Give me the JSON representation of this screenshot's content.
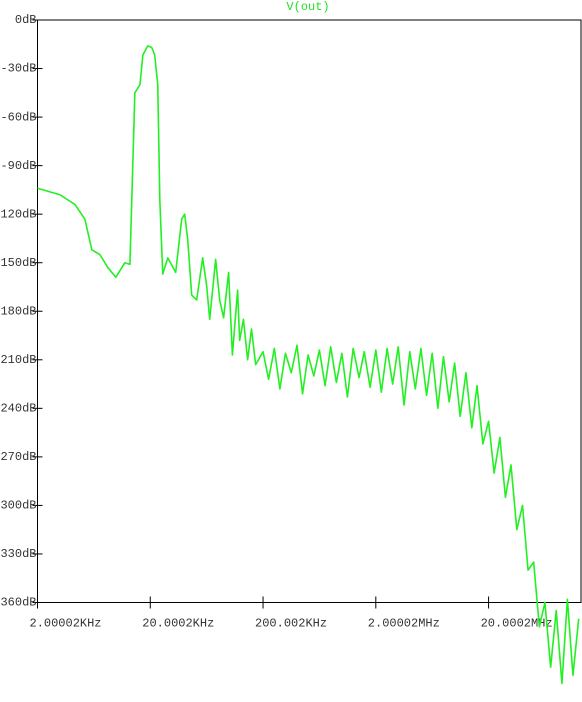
{
  "chart_data": {
    "type": "line",
    "title": "V(out)",
    "xscale": "log",
    "grid": false,
    "x": [
      2000,
      3160,
      4290,
      5260,
      6070,
      7150,
      8410,
      9900,
      11900,
      13200,
      14600,
      16200,
      17200,
      19000,
      20600,
      21900,
      23300,
      24300,
      25800,
      28600,
      33600,
      38000,
      40400,
      43000,
      46600,
      51600,
      58300,
      63200,
      67300,
      76000,
      82500,
      89400,
      99000,
      107000,
      119000,
      124000,
      134000,
      146000,
      158000,
      172000,
      200000,
      224000,
      252000,
      282000,
      316000,
      356000,
      400000,
      448000,
      502000,
      564000,
      632000,
      710000,
      796000,
      894000,
      1000000,
      1120000,
      1260000,
      1420000,
      1580000,
      1780000,
      2000000,
      2240000,
      2520000,
      2820000,
      3160000,
      3560000,
      4000000,
      4480000,
      5020000,
      5640000,
      6320000,
      7100000,
      7960000,
      8940000,
      10000000,
      11200000,
      12600000,
      14200000,
      15800000,
      17800000,
      20000000,
      22400000,
      25200000,
      28200000,
      31600000,
      35600000,
      40000000,
      44800000,
      50200000,
      56400000,
      63200000,
      71000000,
      79600000,
      89400000,
      100000000,
      112000000,
      126000000
    ],
    "series": [
      {
        "name": "V(out)",
        "color": "#22f022",
        "values": [
          -104,
          -108,
          -114,
          -123,
          -142,
          -145,
          -153,
          -159,
          -150,
          -151,
          -45,
          -40,
          -21.6,
          -16,
          -17,
          -21.6,
          -40,
          -111,
          -157,
          -147,
          -156,
          -123,
          -120,
          -136,
          -170,
          -173,
          -147,
          -164,
          -185,
          -148,
          -173,
          -184,
          -156,
          -207,
          -167,
          -198,
          -185,
          -210,
          -191,
          -213,
          -205,
          -222,
          -203,
          -228,
          -206,
          -218,
          -201,
          -231,
          -207,
          -220,
          -204,
          -226,
          -202,
          -224,
          -206,
          -233,
          -203,
          -221,
          -205,
          -227,
          -204,
          -230,
          -203,
          -225,
          -202,
          -238,
          -205,
          -228,
          -203,
          -232,
          -206,
          -240,
          -208,
          -236,
          -212,
          -245,
          -218,
          -252,
          -226,
          -262,
          -248,
          -280,
          -258,
          -295,
          -275,
          -315,
          -300,
          -340,
          -335,
          -375,
          -360,
          -400,
          -365,
          -410,
          -358,
          -405,
          -370
        ]
      }
    ],
    "xlim": [
      2000,
      132000000
    ],
    "xticks": [
      {
        "value": 2000.02,
        "label": "2.00002KHz"
      },
      {
        "value": 20000.2,
        "label": "20.0002KHz"
      },
      {
        "value": 200002,
        "label": "200.002KHz"
      },
      {
        "value": 2000020,
        "label": "2.00002MHz"
      },
      {
        "value": 20000200,
        "label": "20.0002MHz"
      }
    ],
    "ylim": [
      -360,
      0
    ],
    "yticks": [
      {
        "value": 0,
        "label": "0dB"
      },
      {
        "value": -30,
        "label": "-30dB"
      },
      {
        "value": -60,
        "label": "-60dB"
      },
      {
        "value": -90,
        "label": "-90dB"
      },
      {
        "value": -120,
        "label": "-120dB"
      },
      {
        "value": -150,
        "label": "-150dB"
      },
      {
        "value": -180,
        "label": "-180dB"
      },
      {
        "value": -210,
        "label": "-210dB"
      },
      {
        "value": -240,
        "label": "-240dB"
      },
      {
        "value": -270,
        "label": "-270dB"
      },
      {
        "value": -300,
        "label": "-300dB"
      },
      {
        "value": -330,
        "label": "-330dB"
      },
      {
        "value": -360,
        "label": "-360dB"
      }
    ]
  }
}
